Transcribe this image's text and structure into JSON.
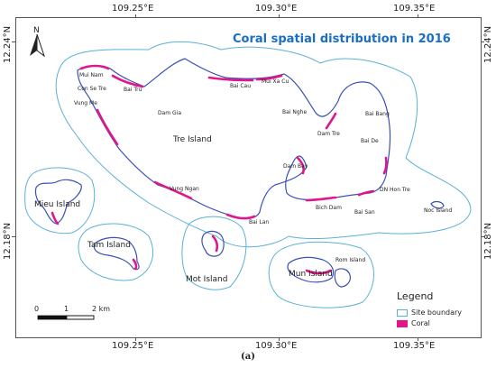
{
  "map": {
    "title": "Coral spatial distribution in 2016",
    "caption": "(a)",
    "north_arrow_label": "N",
    "lon_ticks": [
      "109.25°E",
      "109.30°E",
      "109.35°E"
    ],
    "lat_ticks": [
      "12.24°N",
      "12.18°N"
    ],
    "islands": [
      "Tre Island",
      "Mieu Island",
      "Tam Island",
      "Mot Island",
      "Mun Island",
      "Noc Island"
    ],
    "places": [
      "Mui Nam",
      "Con Se Tre",
      "Vung Me",
      "Bai Tru",
      "Dam Gia",
      "Bai Cau",
      "Mui Xa Cu",
      "Bai Nghe",
      "Dam Tre",
      "Bai Bang",
      "Bai De",
      "Dam Bay",
      "DN Hon Tre",
      "Vung Ngan",
      "Bich Dam",
      "Bai San",
      "Bai Lan",
      "Rom Island"
    ],
    "scale_bar": {
      "labels": [
        "0",
        "1",
        "2 km"
      ]
    },
    "legend": {
      "title": "Legend",
      "items": [
        {
          "label": "Site boundary",
          "color": "#5bb0d6"
        },
        {
          "label": "Coral",
          "color": "#e0168a"
        }
      ]
    },
    "colors": {
      "boundary": "#5bb0d6",
      "coast": "#3a4fb8",
      "coral": "#e0168a",
      "title": "#1a6fc4"
    }
  }
}
